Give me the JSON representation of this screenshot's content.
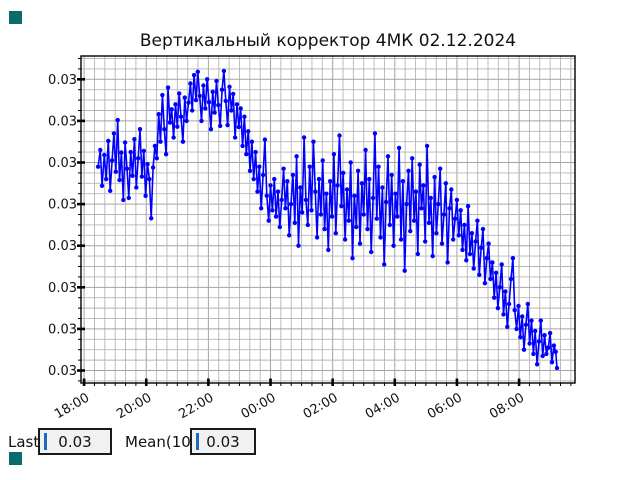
{
  "title": "Вертикальный корректор 4МК 02.12.2024",
  "colors": {
    "series": "#0000ff",
    "grid_minor": "#b5b5b5",
    "grid_major": "#a3a3a3",
    "spine": "#000000",
    "plot_bg": "#ffffff",
    "page_bg": "#ffffff",
    "tick_text": "#111111",
    "cursor": "#1a6ac4",
    "field_bg": "#f1f1f1",
    "field_border": "#1a1a1a",
    "teal_marker": "#0b6b6b"
  },
  "controls": {
    "last_label": "Last",
    "last_value": "0.03",
    "mean_label": "Mean(10)",
    "mean_value": "0.03"
  },
  "chart_data": {
    "type": "line",
    "title": "Вертикальный корректор 4МК 02.12.2024",
    "xlabel": "",
    "ylabel": "",
    "legend": "none",
    "grid": "both",
    "x_tick_labels": [
      "18:00",
      "20:00",
      "22:00",
      "00:00",
      "02:00",
      "04:00",
      "06:00",
      "08:00"
    ],
    "x_tick_hours": [
      18,
      20,
      22,
      24,
      26,
      28,
      30,
      32
    ],
    "x_minor_step_hours": 0.333333,
    "xlim_hours": [
      17.9,
      33.8
    ],
    "y_tick_label": "0.03",
    "y_tick_values": [
      0.0303,
      0.0302,
      0.0301,
      0.03,
      0.0299,
      0.0298,
      0.0297,
      0.0296
    ],
    "y_minor_step": 2.5e-05,
    "ylim": [
      0.02957,
      0.030356
    ],
    "series": [
      {
        "name": "vertical-corrector-4MK",
        "marker": "circle",
        "points": [
          [
            18.45,
            0.03009
          ],
          [
            18.52,
            0.03013
          ],
          [
            18.58,
            0.030044
          ],
          [
            18.65,
            0.030118
          ],
          [
            18.71,
            0.03006
          ],
          [
            18.78,
            0.030152
          ],
          [
            18.84,
            0.030032
          ],
          [
            18.9,
            0.030105
          ],
          [
            18.96,
            0.03017
          ],
          [
            19.02,
            0.030078
          ],
          [
            19.08,
            0.030202
          ],
          [
            19.14,
            0.030058
          ],
          [
            19.2,
            0.030124
          ],
          [
            19.26,
            0.03001
          ],
          [
            19.32,
            0.030148
          ],
          [
            19.38,
            0.030085
          ],
          [
            19.44,
            0.030015
          ],
          [
            19.5,
            0.030125
          ],
          [
            19.56,
            0.030068
          ],
          [
            19.62,
            0.030156
          ],
          [
            19.68,
            0.03004
          ],
          [
            19.74,
            0.03011
          ],
          [
            19.8,
            0.03018
          ],
          [
            19.86,
            0.030066
          ],
          [
            19.92,
            0.030128
          ],
          [
            19.98,
            0.03002
          ],
          [
            20.04,
            0.030096
          ],
          [
            20.1,
            0.03006
          ],
          [
            20.16,
            0.029966
          ],
          [
            20.22,
            0.030088
          ],
          [
            20.28,
            0.03014
          ],
          [
            20.34,
            0.03011
          ],
          [
            20.4,
            0.030216
          ],
          [
            20.46,
            0.03015
          ],
          [
            20.52,
            0.030262
          ],
          [
            20.58,
            0.03018
          ],
          [
            20.64,
            0.03012
          ],
          [
            20.7,
            0.03028
          ],
          [
            20.76,
            0.030196
          ],
          [
            20.82,
            0.030228
          ],
          [
            20.88,
            0.03016
          ],
          [
            20.94,
            0.03024
          ],
          [
            21.0,
            0.030186
          ],
          [
            21.06,
            0.030266
          ],
          [
            21.12,
            0.03021
          ],
          [
            21.18,
            0.03015
          ],
          [
            21.24,
            0.030256
          ],
          [
            21.3,
            0.0302
          ],
          [
            21.36,
            0.030244
          ],
          [
            21.42,
            0.03029
          ],
          [
            21.48,
            0.030225
          ],
          [
            21.54,
            0.03031
          ],
          [
            21.6,
            0.03025
          ],
          [
            21.66,
            0.030318
          ],
          [
            21.72,
            0.03026
          ],
          [
            21.78,
            0.0302
          ],
          [
            21.84,
            0.030285
          ],
          [
            21.9,
            0.03023
          ],
          [
            21.96,
            0.0303
          ],
          [
            22.02,
            0.030245
          ],
          [
            22.08,
            0.03018
          ],
          [
            22.14,
            0.03027
          ],
          [
            22.2,
            0.03022
          ],
          [
            22.26,
            0.030296
          ],
          [
            22.32,
            0.030238
          ],
          [
            22.38,
            0.030188
          ],
          [
            22.44,
            0.030275
          ],
          [
            22.5,
            0.03032
          ],
          [
            22.56,
            0.030248
          ],
          [
            22.62,
            0.03019
          ],
          [
            22.68,
            0.030282
          ],
          [
            22.74,
            0.030225
          ],
          [
            22.8,
            0.030265
          ],
          [
            22.86,
            0.03016
          ],
          [
            22.92,
            0.03024
          ],
          [
            22.98,
            0.030185
          ],
          [
            23.04,
            0.03023
          ],
          [
            23.1,
            0.03014
          ],
          [
            23.16,
            0.03021
          ],
          [
            23.22,
            0.03012
          ],
          [
            23.28,
            0.030175
          ],
          [
            23.34,
            0.03008
          ],
          [
            23.4,
            0.03015
          ],
          [
            23.46,
            0.03006
          ],
          [
            23.52,
            0.030125
          ],
          [
            23.58,
            0.03003
          ],
          [
            23.64,
            0.03009
          ],
          [
            23.7,
            0.02999
          ],
          [
            23.76,
            0.03007
          ],
          [
            23.82,
            0.030155
          ],
          [
            23.88,
            0.03002
          ],
          [
            23.94,
            0.02996
          ],
          [
            24.0,
            0.030045
          ],
          [
            24.06,
            0.029985
          ],
          [
            24.12,
            0.03006
          ],
          [
            24.18,
            0.02997
          ],
          [
            24.24,
            0.03003
          ],
          [
            24.3,
            0.029945
          ],
          [
            24.36,
            0.03001
          ],
          [
            24.42,
            0.030085
          ],
          [
            24.48,
            0.02999
          ],
          [
            24.54,
            0.030055
          ],
          [
            24.6,
            0.029925
          ],
          [
            24.66,
            0.03
          ],
          [
            24.72,
            0.03007
          ],
          [
            24.78,
            0.029955
          ],
          [
            24.84,
            0.030115
          ],
          [
            24.9,
            0.0299
          ],
          [
            24.96,
            0.03004
          ],
          [
            25.02,
            0.02998
          ],
          [
            25.08,
            0.03016
          ],
          [
            25.14,
            0.03001
          ],
          [
            25.2,
            0.02995
          ],
          [
            25.26,
            0.03009
          ],
          [
            25.32,
            0.029985
          ],
          [
            25.38,
            0.03015
          ],
          [
            25.44,
            0.03003
          ],
          [
            25.5,
            0.02992
          ],
          [
            25.56,
            0.03006
          ],
          [
            25.62,
            0.029975
          ],
          [
            25.68,
            0.030105
          ],
          [
            25.74,
            0.02994
          ],
          [
            25.8,
            0.030025
          ],
          [
            25.86,
            0.02989
          ],
          [
            25.92,
            0.030055
          ],
          [
            25.98,
            0.02997
          ],
          [
            26.04,
            0.03012
          ],
          [
            26.1,
            0.02993
          ],
          [
            26.16,
            0.030045
          ],
          [
            26.22,
            0.030165
          ],
          [
            26.28,
            0.029995
          ],
          [
            26.34,
            0.030075
          ],
          [
            26.4,
            0.029915
          ],
          [
            26.46,
            0.030035
          ],
          [
            26.52,
            0.02996
          ],
          [
            26.58,
            0.0301
          ],
          [
            26.64,
            0.02987
          ],
          [
            26.7,
            0.03002
          ],
          [
            26.76,
            0.029945
          ],
          [
            26.82,
            0.03008
          ],
          [
            26.88,
            0.029905
          ],
          [
            26.94,
            0.03005
          ],
          [
            27.0,
            0.029975
          ],
          [
            27.06,
            0.03013
          ],
          [
            27.12,
            0.02994
          ],
          [
            27.18,
            0.03006
          ],
          [
            27.24,
            0.029885
          ],
          [
            27.3,
            0.030015
          ],
          [
            27.36,
            0.03017
          ],
          [
            27.42,
            0.029965
          ],
          [
            27.48,
            0.03009
          ],
          [
            27.54,
            0.02992
          ],
          [
            27.6,
            0.03004
          ],
          [
            27.66,
            0.029855
          ],
          [
            27.72,
            0.030005
          ],
          [
            27.78,
            0.030115
          ],
          [
            27.84,
            0.02995
          ],
          [
            27.9,
            0.03007
          ],
          [
            27.96,
            0.0299
          ],
          [
            28.02,
            0.030025
          ],
          [
            28.08,
            0.02997
          ],
          [
            28.14,
            0.030135
          ],
          [
            28.2,
            0.029915
          ],
          [
            28.26,
            0.030055
          ],
          [
            28.32,
            0.02984
          ],
          [
            28.38,
            0.03
          ],
          [
            28.44,
            0.03008
          ],
          [
            28.5,
            0.029935
          ],
          [
            28.56,
            0.03011
          ],
          [
            28.62,
            0.02996
          ],
          [
            28.68,
            0.03003
          ],
          [
            28.74,
            0.02988
          ],
          [
            28.8,
            0.030095
          ],
          [
            28.86,
            0.02999
          ],
          [
            28.92,
            0.030045
          ],
          [
            28.98,
            0.02991
          ],
          [
            29.04,
            0.03014
          ],
          [
            29.1,
            0.029955
          ],
          [
            29.16,
            0.030015
          ],
          [
            29.22,
            0.029875
          ],
          [
            29.28,
            0.030065
          ],
          [
            29.34,
            0.02993
          ],
          [
            29.4,
            0.03
          ],
          [
            29.46,
            0.030085
          ],
          [
            29.52,
            0.029905
          ],
          [
            29.58,
            0.029975
          ],
          [
            29.64,
            0.03005
          ],
          [
            29.7,
            0.02986
          ],
          [
            29.76,
            0.02999
          ],
          [
            29.82,
            0.030035
          ],
          [
            29.88,
            0.029915
          ],
          [
            29.94,
            0.029965
          ],
          [
            30.0,
            0.03001
          ],
          [
            30.06,
            0.029925
          ],
          [
            30.12,
            0.029985
          ],
          [
            30.18,
            0.02989
          ],
          [
            30.24,
            0.02995
          ],
          [
            30.3,
            0.029865
          ],
          [
            30.36,
            0.029995
          ],
          [
            30.42,
            0.02988
          ],
          [
            30.48,
            0.02993
          ],
          [
            30.54,
            0.029845
          ],
          [
            30.6,
            0.02991
          ],
          [
            30.66,
            0.02996
          ],
          [
            30.72,
            0.02983
          ],
          [
            30.78,
            0.029895
          ],
          [
            30.84,
            0.02994
          ],
          [
            30.9,
            0.02981
          ],
          [
            30.96,
            0.02987
          ],
          [
            31.02,
            0.029905
          ],
          [
            31.08,
            0.02982
          ],
          [
            31.14,
            0.02986
          ],
          [
            31.2,
            0.029775
          ],
          [
            31.26,
            0.029835
          ],
          [
            31.32,
            0.02975
          ],
          [
            31.38,
            0.0298
          ],
          [
            31.44,
            0.029855
          ],
          [
            31.5,
            0.029735
          ],
          [
            31.56,
            0.02979
          ],
          [
            31.62,
            0.029705
          ],
          [
            31.68,
            0.02976
          ],
          [
            31.74,
            0.02982
          ],
          [
            31.8,
            0.02987
          ],
          [
            31.86,
            0.029745
          ],
          [
            31.92,
            0.0297
          ],
          [
            31.98,
            0.029755
          ],
          [
            32.04,
            0.02968
          ],
          [
            32.1,
            0.02973
          ],
          [
            32.16,
            0.02965
          ],
          [
            32.22,
            0.02971
          ],
          [
            32.28,
            0.02976
          ],
          [
            32.34,
            0.029665
          ],
          [
            32.4,
            0.02972
          ],
          [
            32.46,
            0.02964
          ],
          [
            32.52,
            0.029695
          ],
          [
            32.58,
            0.029615
          ],
          [
            32.64,
            0.02967
          ],
          [
            32.7,
            0.02972
          ],
          [
            32.76,
            0.029635
          ],
          [
            32.82,
            0.029685
          ],
          [
            32.88,
            0.02964
          ],
          [
            32.94,
            0.029655
          ],
          [
            33.0,
            0.02969
          ],
          [
            33.06,
            0.02962
          ],
          [
            33.12,
            0.02966
          ],
          [
            33.18,
            0.029645
          ],
          [
            33.22,
            0.029606
          ]
        ]
      }
    ]
  }
}
